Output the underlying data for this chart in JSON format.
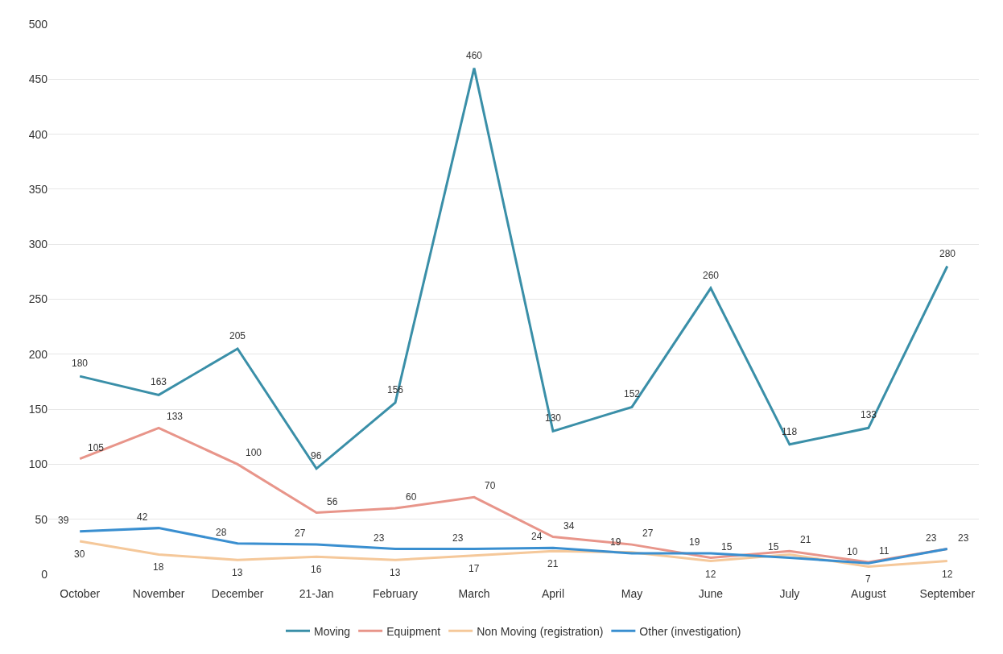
{
  "chart_data": {
    "type": "line",
    "categories": [
      "October",
      "November",
      "December",
      "21-Jan",
      "February",
      "March",
      "April",
      "May",
      "June",
      "July",
      "August",
      "September"
    ],
    "series": [
      {
        "name": "Moving",
        "color": "#3a8fa8",
        "values": [
          180,
          163,
          205,
          96,
          156,
          460,
          130,
          152,
          260,
          118,
          133,
          280
        ],
        "value_labels": [
          "180",
          "163",
          "205",
          "96",
          "156",
          "460",
          "130",
          "152",
          "260",
          "118",
          "133",
          "280"
        ]
      },
      {
        "name": "Equipment",
        "color": "#e8958a",
        "values": [
          105,
          133,
          100,
          56,
          60,
          70,
          34,
          27,
          15,
          21,
          11,
          23
        ],
        "value_labels": [
          "105",
          "133",
          "100",
          "56",
          "60",
          "70",
          "34",
          "27",
          "15",
          "21",
          "11",
          "23"
        ]
      },
      {
        "name": "Non Moving (registration)",
        "color": "#f5c89a",
        "values": [
          30,
          18,
          13,
          16,
          13,
          17,
          21,
          20,
          12,
          18,
          7,
          12
        ],
        "value_labels": [
          "30",
          "18",
          "13",
          "16",
          "13",
          "17",
          "21",
          null,
          "12",
          null,
          "7",
          "12"
        ]
      },
      {
        "name": "Other (investigation)",
        "color": "#3a8fd0",
        "values": [
          39,
          42,
          28,
          27,
          23,
          23,
          24,
          19,
          19,
          15,
          10,
          23
        ],
        "value_labels": [
          "39",
          "42",
          "28",
          "27",
          "23",
          "23",
          "24",
          "19",
          "19",
          "15",
          "10",
          "23"
        ]
      }
    ],
    "ylim": [
      0,
      500
    ],
    "yticks": [
      0,
      50,
      100,
      150,
      200,
      250,
      300,
      350,
      400,
      450,
      500
    ],
    "grid": "y",
    "legend": "bottom",
    "marker": "none",
    "line_style": "solid"
  }
}
